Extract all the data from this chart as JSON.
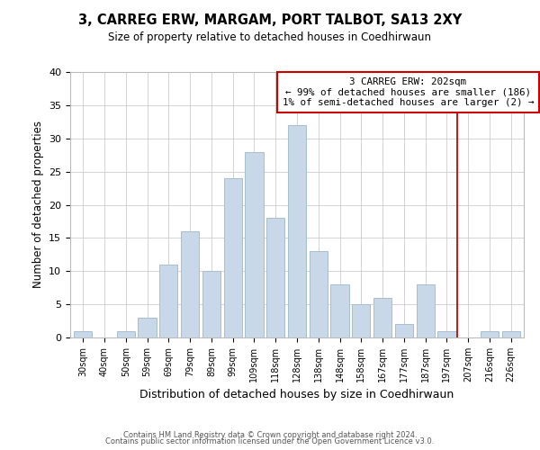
{
  "title": "3, CARREG ERW, MARGAM, PORT TALBOT, SA13 2XY",
  "subtitle": "Size of property relative to detached houses in Coedhirwaun",
  "xlabel": "Distribution of detached houses by size in Coedhirwaun",
  "ylabel": "Number of detached properties",
  "bar_color": "#c8d8e8",
  "bar_edge_color": "#a8bece",
  "categories": [
    "30sqm",
    "40sqm",
    "50sqm",
    "59sqm",
    "69sqm",
    "79sqm",
    "89sqm",
    "99sqm",
    "109sqm",
    "118sqm",
    "128sqm",
    "138sqm",
    "148sqm",
    "158sqm",
    "167sqm",
    "177sqm",
    "187sqm",
    "197sqm",
    "207sqm",
    "216sqm",
    "226sqm"
  ],
  "values": [
    1,
    0,
    1,
    3,
    11,
    16,
    10,
    24,
    28,
    18,
    32,
    13,
    8,
    5,
    6,
    2,
    8,
    1,
    0,
    1,
    1
  ],
  "ylim": [
    0,
    40
  ],
  "yticks": [
    0,
    5,
    10,
    15,
    20,
    25,
    30,
    35,
    40
  ],
  "annotation_box_text": "3 CARREG ERW: 202sqm\n← 99% of detached houses are smaller (186)\n1% of semi-detached houses are larger (2) →",
  "vline_color": "#cc0000",
  "box_edge_color": "#cc0000",
  "footer_line1": "Contains HM Land Registry data © Crown copyright and database right 2024.",
  "footer_line2": "Contains public sector information licensed under the Open Government Licence v3.0.",
  "background_color": "#ffffff",
  "grid_color": "#cccccc"
}
